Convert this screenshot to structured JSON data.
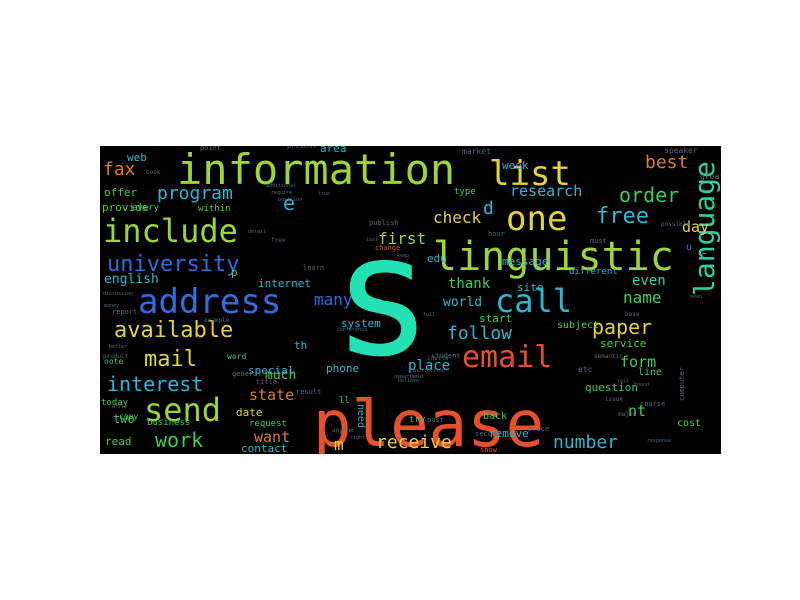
{
  "palette": {
    "background": "#000000",
    "red": "#e8502a",
    "orange": "#e07a2c",
    "yellow": "#e6d23a",
    "lime": "#9bd53a",
    "green": "#3ecf54",
    "teal": "#2fd3a0",
    "aqua": "#22e2b4",
    "cyan": "#2ab8d6",
    "blue": "#2f6de0",
    "indigo": "#3a3ac8",
    "dkgreen": "#2f7e3a",
    "muted": "#556a78"
  },
  "words": [
    {
      "text": "s",
      "size": 168,
      "color": "aqua"
    },
    {
      "text": "please",
      "size": 64,
      "color": "red"
    },
    {
      "text": "information",
      "size": 42,
      "color": "lime"
    },
    {
      "text": "linguistic",
      "size": 40,
      "color": "lime"
    },
    {
      "text": "address",
      "size": 34,
      "color": "blue"
    },
    {
      "text": "include",
      "size": 32,
      "color": "lime"
    },
    {
      "text": "list",
      "size": 34,
      "color": "yellow"
    },
    {
      "text": "one",
      "size": 34,
      "color": "yellow"
    },
    {
      "text": "language",
      "size": 28,
      "color": "teal"
    },
    {
      "text": "email",
      "size": 30,
      "color": "red"
    },
    {
      "text": "call",
      "size": 32,
      "color": "cyan"
    },
    {
      "text": "send",
      "size": 32,
      "color": "lime"
    },
    {
      "text": "university",
      "size": 22,
      "color": "blue"
    },
    {
      "text": "available",
      "size": 22,
      "color": "yellow"
    },
    {
      "text": "free",
      "size": 22,
      "color": "cyan"
    },
    {
      "text": "mail",
      "size": 22,
      "color": "yellow"
    },
    {
      "text": "interest",
      "size": 20,
      "color": "cyan"
    },
    {
      "text": "order",
      "size": 20,
      "color": "green"
    },
    {
      "text": "paper",
      "size": 20,
      "color": "yellow"
    },
    {
      "text": "work",
      "size": 20,
      "color": "green"
    },
    {
      "text": "program",
      "size": 18,
      "color": "cyan"
    },
    {
      "text": "receive",
      "size": 18,
      "color": "yellow"
    },
    {
      "text": "follow",
      "size": 18,
      "color": "cyan"
    },
    {
      "text": "number",
      "size": 18,
      "color": "cyan"
    },
    {
      "text": "research",
      "size": 15,
      "color": "cyan"
    },
    {
      "text": "fax",
      "size": 18,
      "color": "orange"
    },
    {
      "text": "best",
      "size": 18,
      "color": "orange"
    },
    {
      "text": "name",
      "size": 16,
      "color": "green"
    },
    {
      "text": "check",
      "size": 16,
      "color": "yellow"
    },
    {
      "text": "first",
      "size": 16,
      "color": "lime"
    },
    {
      "text": "many",
      "size": 16,
      "color": "blue"
    },
    {
      "text": "state",
      "size": 15,
      "color": "orange"
    },
    {
      "text": "want",
      "size": 15,
      "color": "orange"
    },
    {
      "text": "form",
      "size": 15,
      "color": "green"
    },
    {
      "text": "thank",
      "size": 14,
      "color": "green"
    },
    {
      "text": "day",
      "size": 15,
      "color": "yellow"
    },
    {
      "text": "even",
      "size": 14,
      "color": "teal"
    },
    {
      "text": "world",
      "size": 13,
      "color": "cyan"
    },
    {
      "text": "place",
      "size": 14,
      "color": "cyan"
    },
    {
      "text": "much",
      "size": 13,
      "color": "green"
    },
    {
      "text": "english",
      "size": 13,
      "color": "cyan"
    },
    {
      "text": "internet",
      "size": 11,
      "color": "cyan"
    },
    {
      "text": "system",
      "size": 11,
      "color": "cyan"
    },
    {
      "text": "phone",
      "size": 11,
      "color": "cyan"
    },
    {
      "text": "date",
      "size": 11,
      "color": "yellow"
    },
    {
      "text": "contact",
      "size": 11,
      "color": "cyan"
    },
    {
      "text": "special",
      "size": 11,
      "color": "cyan"
    },
    {
      "text": "week",
      "size": 11,
      "color": "cyan"
    },
    {
      "text": "message",
      "size": 11,
      "color": "cyan"
    },
    {
      "text": "edu",
      "size": 11,
      "color": "cyan"
    },
    {
      "text": "site",
      "size": 11,
      "color": "cyan"
    },
    {
      "text": "start",
      "size": 11,
      "color": "green"
    },
    {
      "text": "subject",
      "size": 10,
      "color": "green"
    },
    {
      "text": "service",
      "size": 11,
      "color": "green"
    },
    {
      "text": "question",
      "size": 11,
      "color": "green"
    },
    {
      "text": "remove",
      "size": 11,
      "color": "cyan"
    },
    {
      "text": "line",
      "size": 10,
      "color": "green"
    },
    {
      "text": "cost",
      "size": 10,
      "color": "green"
    },
    {
      "text": "different",
      "size": 9,
      "color": "cyan"
    },
    {
      "text": "two",
      "size": 12,
      "color": "green"
    },
    {
      "text": "read",
      "size": 11,
      "color": "green"
    },
    {
      "text": "offer",
      "size": 11,
      "color": "green"
    },
    {
      "text": "provide",
      "size": 11,
      "color": "green"
    },
    {
      "text": "web",
      "size": 11,
      "color": "cyan"
    },
    {
      "text": "business",
      "size": 9,
      "color": "green"
    },
    {
      "text": "area",
      "size": 11,
      "color": "cyan"
    },
    {
      "text": "need",
      "size": 10,
      "color": "cyan"
    },
    {
      "text": "back",
      "size": 10,
      "color": "green"
    },
    {
      "text": "try",
      "size": 9,
      "color": "green"
    },
    {
      "text": "type",
      "size": 9,
      "color": "green"
    },
    {
      "text": "every",
      "size": 9,
      "color": "green"
    },
    {
      "text": "within",
      "size": 9,
      "color": "green"
    },
    {
      "text": "today",
      "size": 9,
      "color": "green"
    },
    {
      "text": "request",
      "size": 9,
      "color": "green"
    },
    {
      "text": "note",
      "size": 8,
      "color": "green"
    },
    {
      "text": "copy",
      "size": 8,
      "color": "green"
    },
    {
      "text": "market",
      "size": 8,
      "color": "muted"
    },
    {
      "text": "point",
      "size": 7,
      "color": "muted"
    },
    {
      "text": "present",
      "size": 7,
      "color": "muted"
    },
    {
      "text": "speaker",
      "size": 8,
      "color": "muted"
    },
    {
      "text": "great",
      "size": 8,
      "color": "muted"
    },
    {
      "text": "word",
      "size": 8,
      "color": "green"
    },
    {
      "text": "learn",
      "size": 7,
      "color": "muted"
    },
    {
      "text": "title",
      "size": 7,
      "color": "muted"
    },
    {
      "text": "general",
      "size": 7,
      "color": "muted"
    },
    {
      "text": "student",
      "size": 7,
      "color": "muted"
    },
    {
      "text": "post",
      "size": 7,
      "color": "muted"
    },
    {
      "text": "hour",
      "size": 7,
      "color": "muted"
    },
    {
      "text": "second",
      "size": 7,
      "color": "muted"
    },
    {
      "text": "price",
      "size": 7,
      "color": "muted"
    },
    {
      "text": "course",
      "size": 7,
      "color": "muted"
    },
    {
      "text": "computer",
      "size": 7,
      "color": "muted"
    },
    {
      "text": "show",
      "size": 7,
      "color": "red"
    },
    {
      "text": "change",
      "size": 7,
      "color": "red"
    },
    {
      "text": "result",
      "size": 7,
      "color": "muted"
    },
    {
      "text": "report",
      "size": 7,
      "color": "muted"
    },
    {
      "text": "publish",
      "size": 7,
      "color": "muted"
    },
    {
      "text": "possible",
      "size": 6,
      "color": "muted"
    },
    {
      "text": "must",
      "size": 7,
      "color": "muted"
    },
    {
      "text": "major",
      "size": 6,
      "color": "muted"
    },
    {
      "text": "issue",
      "size": 6,
      "color": "muted"
    },
    {
      "text": "base",
      "size": 6,
      "color": "muted"
    },
    {
      "text": "e",
      "size": 20,
      "color": "cyan"
    },
    {
      "text": "d",
      "size": 18,
      "color": "cyan"
    },
    {
      "text": "m",
      "size": 16,
      "color": "yellow"
    },
    {
      "text": "p",
      "size": 11,
      "color": "green"
    },
    {
      "text": "u",
      "size": 10,
      "color": "blue"
    },
    {
      "text": "c",
      "size": 11,
      "color": "cyan"
    },
    {
      "text": "nt",
      "size": 15,
      "color": "green"
    },
    {
      "text": "th",
      "size": 11,
      "color": "cyan"
    },
    {
      "text": "ll",
      "size": 9,
      "color": "green"
    },
    {
      "text": "etc",
      "size": 8,
      "color": "muted"
    },
    {
      "text": "semantic",
      "size": 6,
      "color": "muted"
    },
    {
      "text": "book",
      "size": 6,
      "color": "muted"
    },
    {
      "text": "free",
      "size": 6,
      "color": "muted"
    },
    {
      "text": "product",
      "size": 6,
      "color": "muted"
    },
    {
      "text": "anyone",
      "size": 6,
      "color": "muted"
    },
    {
      "text": "example",
      "size": 6,
      "color": "muted"
    },
    {
      "text": "invite",
      "size": 6,
      "color": "muted"
    },
    {
      "text": "conference",
      "size": 5,
      "color": "muted"
    },
    {
      "text": "believe",
      "size": 5,
      "color": "muted"
    },
    {
      "text": "money",
      "size": 5,
      "color": "muted"
    },
    {
      "text": "discussion",
      "size": 5,
      "color": "muted"
    },
    {
      "text": "better",
      "size": 5,
      "color": "muted"
    },
    {
      "text": "write",
      "size": 5,
      "color": "muted"
    },
    {
      "text": "right",
      "size": 5,
      "color": "muted"
    },
    {
      "text": "text",
      "size": 5,
      "color": "muted"
    },
    {
      "text": "full",
      "size": 5,
      "color": "muted"
    },
    {
      "text": "keep",
      "size": 5,
      "color": "muted"
    },
    {
      "text": "department",
      "size": 5,
      "color": "muted"
    },
    {
      "text": "additional",
      "size": 5,
      "color": "muted"
    },
    {
      "text": "instruction",
      "size": 5,
      "color": "muted"
    },
    {
      "text": "position",
      "size": 5,
      "color": "muted"
    },
    {
      "text": "detail",
      "size": 5,
      "color": "muted"
    },
    {
      "text": "found",
      "size": 5,
      "color": "muted"
    },
    {
      "text": "require",
      "size": 5,
      "color": "muted"
    },
    {
      "text": "true",
      "size": 5,
      "color": "muted"
    },
    {
      "text": "last",
      "size": 5,
      "color": "muted"
    },
    {
      "text": "response",
      "size": 5,
      "color": "muted"
    },
    {
      "text": "mean",
      "size": 5,
      "color": "muted"
    }
  ]
}
